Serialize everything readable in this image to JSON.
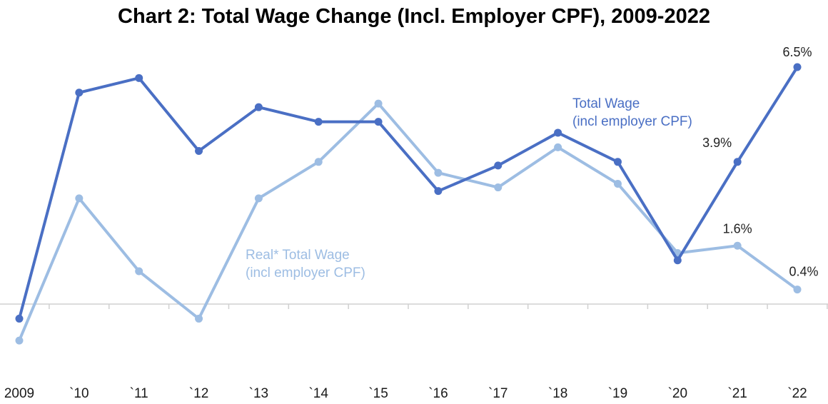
{
  "chart_data": {
    "type": "line",
    "title": "Chart 2: Total Wage Change (Incl. Employer CPF), 2009-2022",
    "xlabel": "",
    "ylabel": "",
    "categories": [
      "2009",
      "`10",
      "`11",
      "`12",
      "`13",
      "`14",
      "`15",
      "`16",
      "`17",
      "`18",
      "`19",
      "`20",
      "`21",
      "`22"
    ],
    "ylim": [
      -1.6,
      6.8
    ],
    "grid": false,
    "series": [
      {
        "name": "Total Wage\n(incl employer CPF)",
        "color": "#4a6fc4",
        "values": [
          -0.4,
          5.8,
          6.2,
          4.2,
          5.4,
          5.0,
          5.0,
          3.1,
          3.8,
          4.7,
          3.9,
          1.2,
          3.9,
          6.5
        ]
      },
      {
        "name": "Real* Total Wage\n(incl employer CPF)",
        "color": "#9dbde3",
        "values": [
          -1.0,
          2.9,
          0.9,
          -0.4,
          2.9,
          3.9,
          5.5,
          3.6,
          3.2,
          4.3,
          3.3,
          1.4,
          1.6,
          0.4
        ]
      }
    ],
    "data_labels": [
      {
        "text": "6.5%",
        "series": 0,
        "index": 13
      },
      {
        "text": "3.9%",
        "series": 0,
        "index": 12
      },
      {
        "text": "1.6%",
        "series": 1,
        "index": 12
      },
      {
        "text": "0.4%",
        "series": 1,
        "index": 13
      }
    ],
    "series_labels": [
      {
        "lines": [
          "Total Wage",
          "(incl employer CPF)"
        ],
        "series": 0
      },
      {
        "lines": [
          "Real* Total Wage",
          "(incl employer CPF)"
        ],
        "series": 1
      }
    ]
  }
}
